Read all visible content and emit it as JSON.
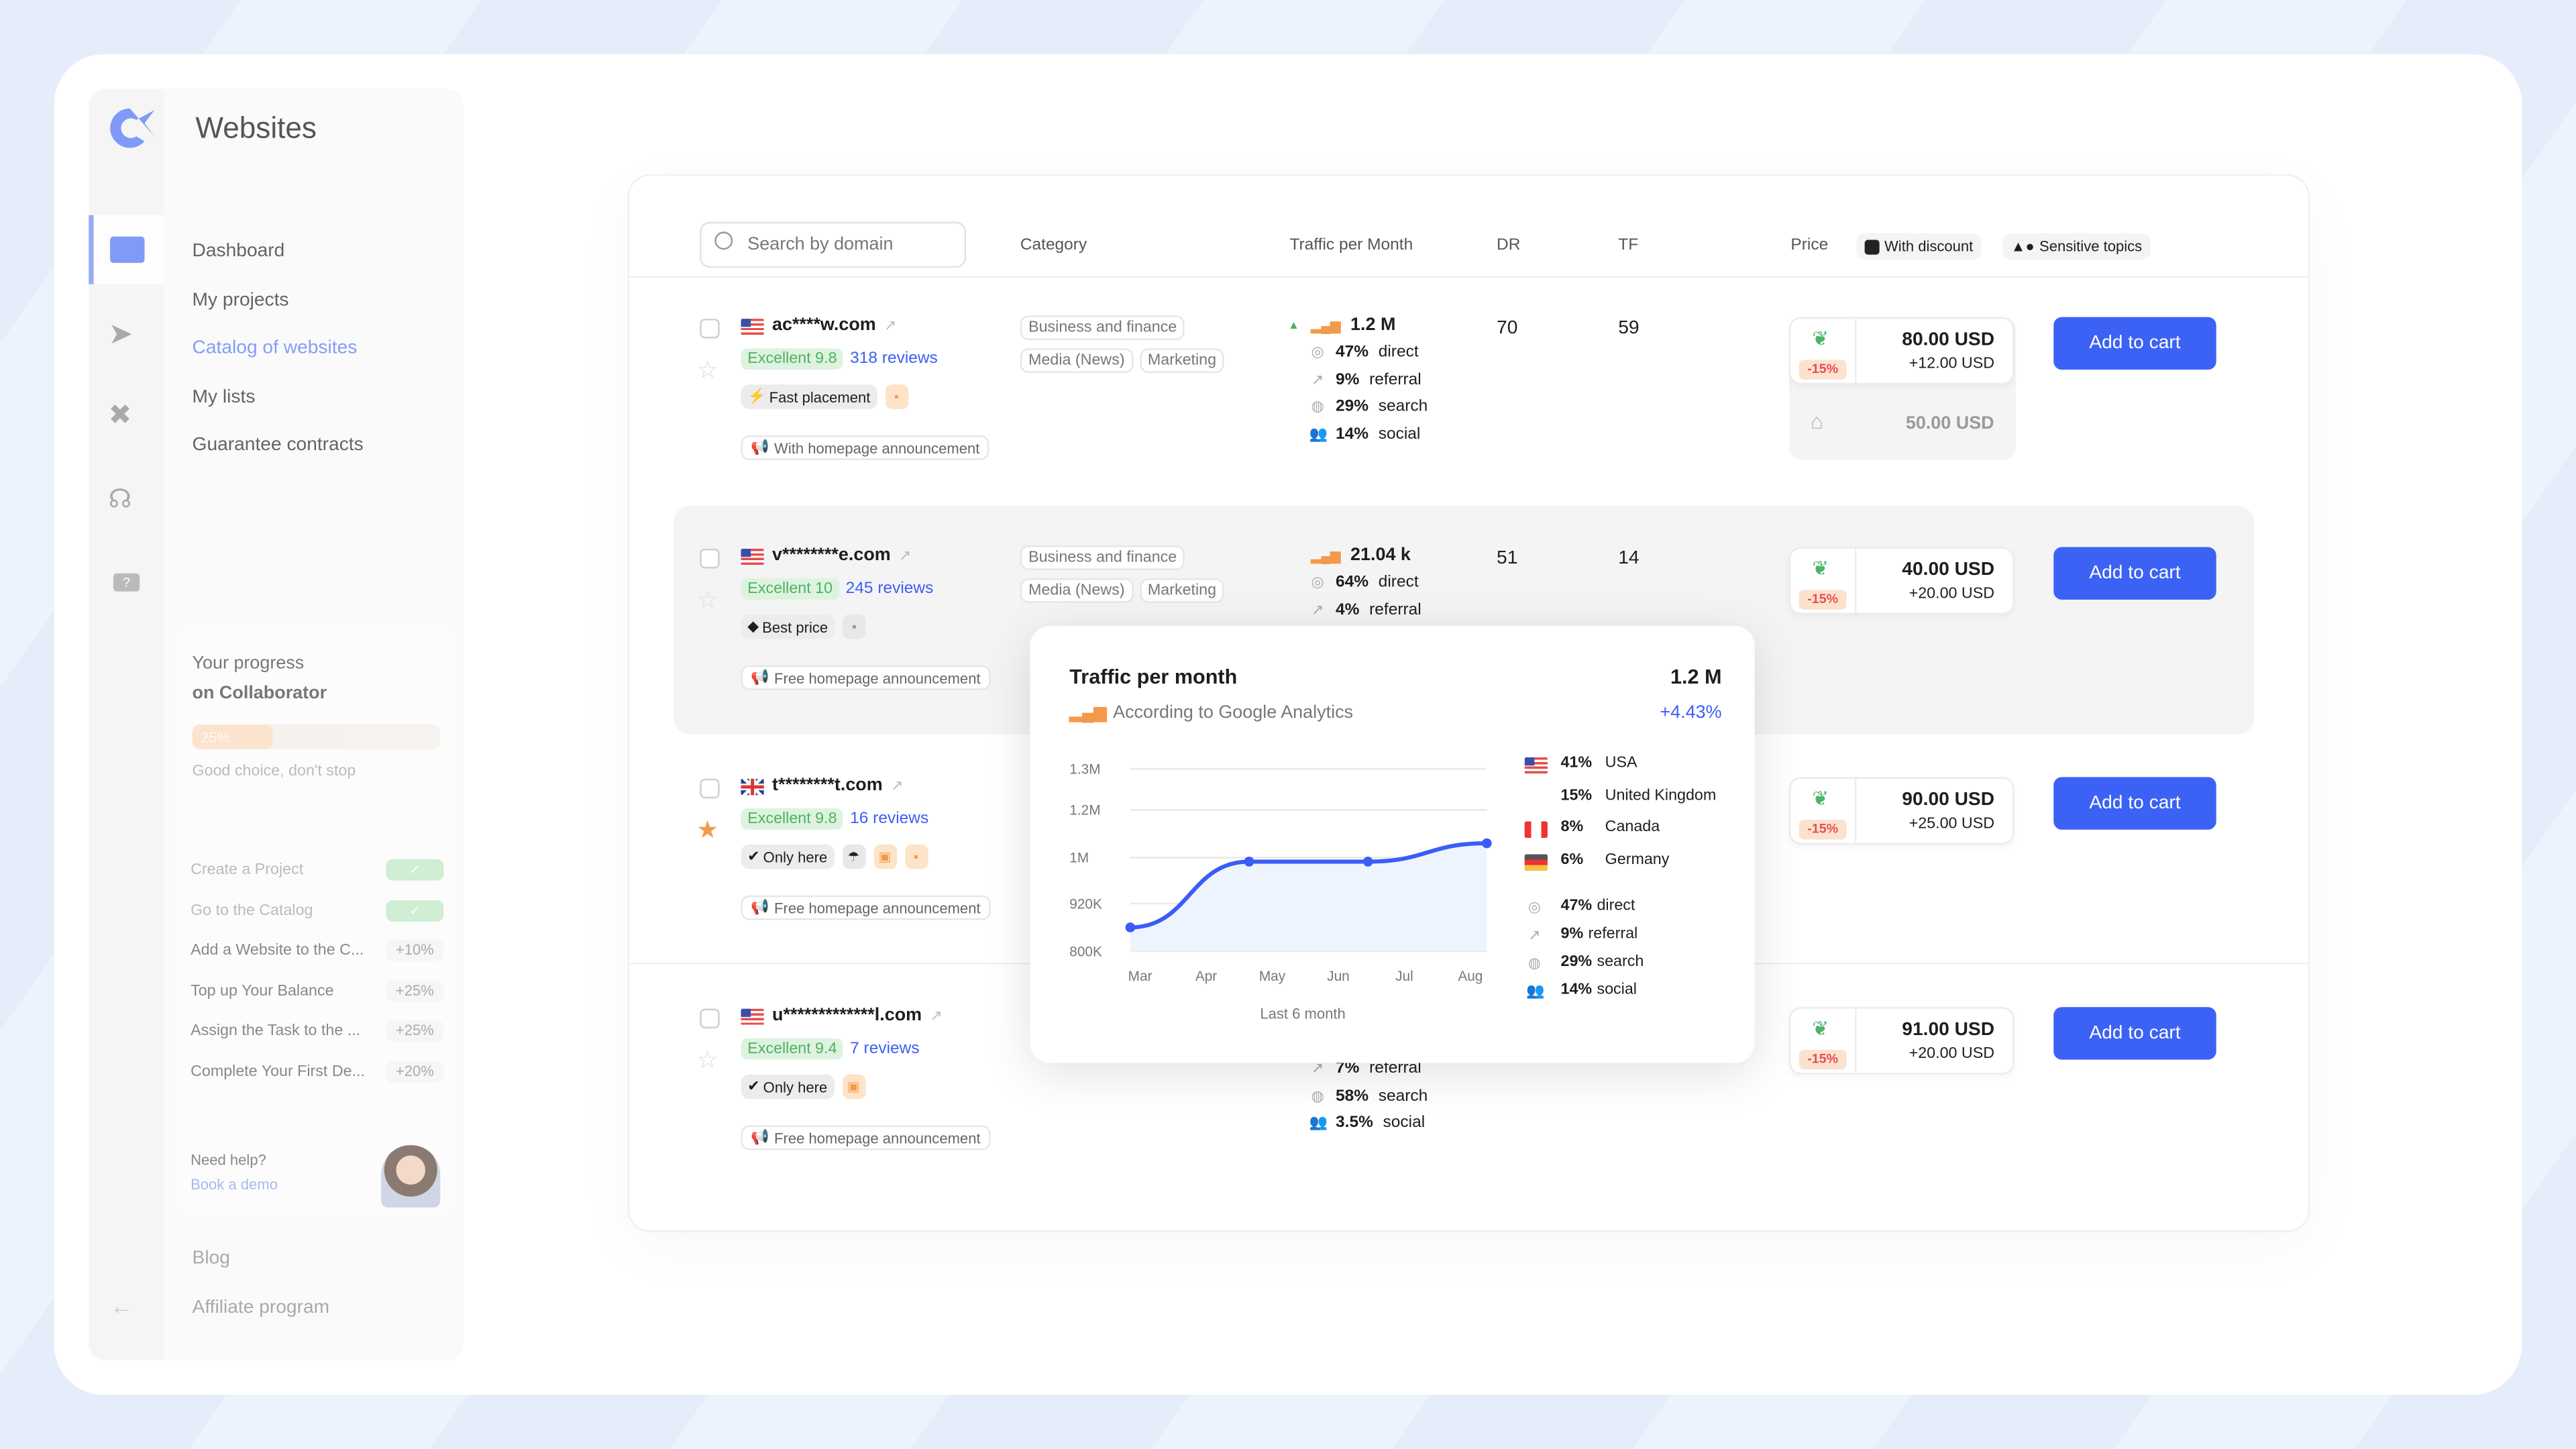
{
  "app": {
    "title": "Websites",
    "logo": "collaborator-logo"
  },
  "sidebar": {
    "rail_icons": [
      "catalog-icon",
      "paper-plane-icon",
      "tools-icon",
      "headset-icon",
      "help-chat-icon"
    ],
    "items": [
      {
        "label": "Dashboard"
      },
      {
        "label": "My projects"
      },
      {
        "label": "Catalog of websites",
        "active": true
      },
      {
        "label": "My lists"
      },
      {
        "label": "Guarantee contracts"
      }
    ],
    "progress": {
      "title": "Your progress",
      "subtitle": "on Collaborator",
      "percent": 25,
      "percent_label": "25%",
      "note": "Good choice, don't stop",
      "tasks": [
        {
          "label": "Create a Project",
          "status": "done"
        },
        {
          "label": "Go to the Catalog",
          "status": "done"
        },
        {
          "label": "Add a Website to the C...",
          "reward": "+10%"
        },
        {
          "label": "Top up Your Balance",
          "reward": "+25%"
        },
        {
          "label": "Assign the Task to the ...",
          "reward": "+25%"
        },
        {
          "label": "Complete Your First De...",
          "reward": "+20%"
        }
      ],
      "help_title": "Need help?",
      "help_link": "Book a demo"
    },
    "footer": [
      {
        "label": "Blog"
      },
      {
        "label": "Affiliate program"
      }
    ]
  },
  "table": {
    "search_placeholder": "Search by domain",
    "headers": {
      "category": "Category",
      "traffic": "Traffic per Month",
      "dr": "DR",
      "tf": "TF",
      "price": "Price"
    },
    "filters": [
      {
        "label": "With discount",
        "icon": "discount-icon"
      },
      {
        "label": "Sensitive topics",
        "icon": "shapes-icon"
      }
    ],
    "add_to_cart": "Add to cart",
    "rows": [
      {
        "flag": "us",
        "domain": "ac****w.com",
        "rating": "Excellent 9.8",
        "reviews": "318 reviews",
        "starred": false,
        "badge": {
          "label": "Fast placement",
          "icon": "bolt-icon"
        },
        "extra_icons": [
          "chat-icon-orange"
        ],
        "announcement": "With homepage announcement",
        "categories": [
          [
            "Business and finance"
          ],
          [
            "Media (News)",
            "Marketing"
          ]
        ],
        "traffic": "1.2 M",
        "trend": "up",
        "sources": [
          [
            "47%",
            "direct"
          ],
          [
            "9%",
            "referral"
          ],
          [
            "29%",
            "search"
          ],
          [
            "14%",
            "social"
          ]
        ],
        "dr": "70",
        "tf": "59",
        "price": "80.00 USD",
        "price_extra": "+12.00 USD",
        "discount": "-15%",
        "homepage_price": "50.00 USD"
      },
      {
        "flag": "us",
        "domain": "v********e.com",
        "rating": "Excellent 10",
        "reviews": "245 reviews",
        "starred": false,
        "badge": {
          "label": "Best price",
          "icon": "tag-icon"
        },
        "extra_icons": [
          "chat-icon-gray"
        ],
        "announcement": "Free homepage announcement",
        "categories": [
          [
            "Business and finance"
          ],
          [
            "Media (News)",
            "Marketing"
          ]
        ],
        "traffic": "21.04 k",
        "sources": [
          [
            "64%",
            "direct"
          ],
          [
            "4%",
            "referral"
          ]
        ],
        "dr": "51",
        "tf": "14",
        "price": "40.00 USD",
        "price_extra": "+20.00 USD",
        "discount": "-15%"
      },
      {
        "flag": "uk",
        "domain": "t********t.com",
        "rating": "Excellent 9.8",
        "reviews": "16 reviews",
        "starred": true,
        "badge": {
          "label": "Only here",
          "icon": "check-circle-icon"
        },
        "extra_icons": [
          "umbrella-icon",
          "briefcase-icon",
          "chat-icon-orange"
        ],
        "announcement": "Free homepage announcement",
        "price": "90.00 USD",
        "price_extra": "+25.00 USD",
        "discount": "-15%"
      },
      {
        "flag": "us",
        "domain": "u*************l.com",
        "rating": "Excellent 9.4",
        "reviews": "7 reviews",
        "starred": false,
        "badge": {
          "label": "Only here",
          "icon": "check-circle-icon"
        },
        "extra_icons": [
          "briefcase-icon"
        ],
        "announcement": "Free homepage announcement",
        "sources": [
          [
            "7%",
            "referral"
          ],
          [
            "58%",
            "search"
          ],
          [
            "3.5%",
            "social"
          ]
        ],
        "price": "91.00 USD",
        "price_extra": "+20.00 USD",
        "discount": "-15%"
      }
    ]
  },
  "popup": {
    "title": "Traffic per month",
    "total": "1.2 M",
    "source": "According to Google Analytics",
    "change": "+4.43%",
    "caption": "Last 6 month",
    "countries": [
      {
        "flag": "us",
        "pct": "41%",
        "name": "USA"
      },
      {
        "flag": "uk",
        "pct": "15%",
        "name": "United Kingdom"
      },
      {
        "flag": "ca",
        "pct": "8%",
        "name": "Canada"
      },
      {
        "flag": "de",
        "pct": "6%",
        "name": "Germany"
      }
    ],
    "sources": [
      [
        "47%",
        "direct"
      ],
      [
        "9%",
        "referral"
      ],
      [
        "29%",
        "search"
      ],
      [
        "14%",
        "social"
      ]
    ]
  },
  "colors": {
    "accent": "#3c62f5",
    "line": "#3b5cf6",
    "rating_green": "#4fb163",
    "discount_red": "#e84e4e",
    "orange": "#f39a4a"
  },
  "chart_data": {
    "type": "area",
    "title": "Traffic per month",
    "xlabel": "Last 6 month",
    "ylabel": "",
    "x_ticks": [
      "Mar",
      "Apr",
      "May",
      "Jun",
      "Jul",
      "Aug"
    ],
    "y_ticks": [
      "800K",
      "920K",
      "1M",
      "1.2M",
      "1.3M"
    ],
    "y_tick_values": [
      800000,
      920000,
      1000000,
      1200000,
      1300000
    ],
    "series": [
      {
        "values": [
          860000,
          993000,
          993000,
          1060000
        ]
      }
    ],
    "grid": true,
    "legend": "none"
  }
}
